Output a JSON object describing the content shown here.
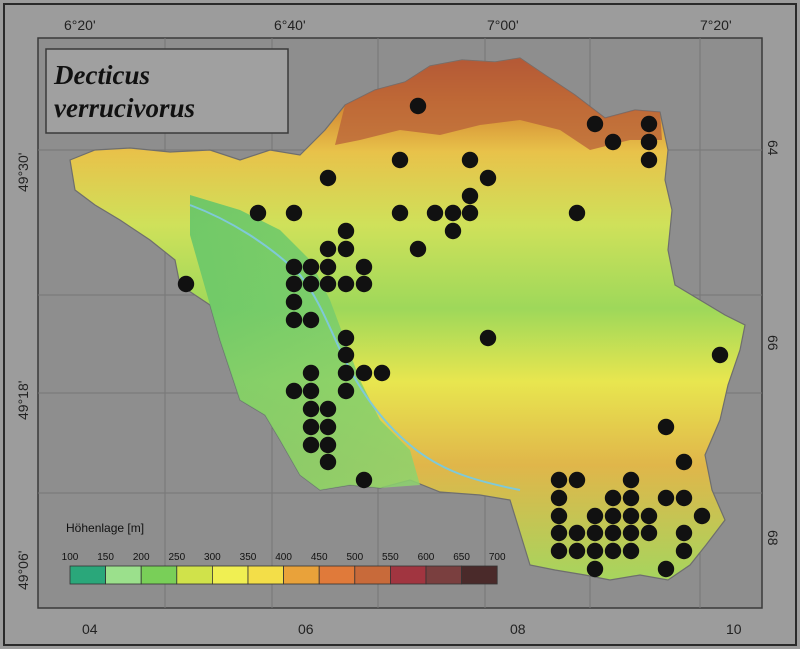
{
  "title": {
    "line1": "Decticus",
    "line2": "verrucivorus"
  },
  "top_labels": [
    "6°20'",
    "6°40'",
    "7°00'",
    "7°20'"
  ],
  "left_labels": [
    "49°30'",
    "49°18'",
    "49°06'"
  ],
  "right_labels": [
    "64",
    "66",
    "68"
  ],
  "bottom_labels": [
    "04",
    "06",
    "08",
    "10"
  ],
  "legend": {
    "title": "Höhenlage [m]",
    "ticks": [
      "100",
      "150",
      "200",
      "250",
      "300",
      "350",
      "400",
      "450",
      "500",
      "550",
      "600",
      "650",
      "700"
    ],
    "colors": [
      "#2aa77a",
      "#9be08c",
      "#79cf58",
      "#d0e24a",
      "#f0ef52",
      "#f3de48",
      "#e9a23a",
      "#e07a3a",
      "#c86a3a",
      "#a13540",
      "#7a3f3f",
      "#4a2a2a"
    ]
  },
  "colors": {
    "background": "#9c9c9c",
    "grid": "#7c7c7c",
    "dot": "#111111"
  },
  "map_data": {
    "species": "Decticus verrucivorus",
    "marker": "occurrence-dot",
    "occurrences": [
      [
        418,
        106
      ],
      [
        595,
        124
      ],
      [
        613,
        142
      ],
      [
        649,
        124
      ],
      [
        649,
        142
      ],
      [
        649,
        160
      ],
      [
        400,
        160
      ],
      [
        470,
        160
      ],
      [
        328,
        178
      ],
      [
        488,
        178
      ],
      [
        470,
        196
      ],
      [
        258,
        213
      ],
      [
        294,
        213
      ],
      [
        400,
        213
      ],
      [
        435,
        213
      ],
      [
        453,
        213
      ],
      [
        470,
        213
      ],
      [
        577,
        213
      ],
      [
        453,
        231
      ],
      [
        346,
        231
      ],
      [
        328,
        249
      ],
      [
        346,
        249
      ],
      [
        418,
        249
      ],
      [
        294,
        267
      ],
      [
        311,
        267
      ],
      [
        328,
        267
      ],
      [
        364,
        267
      ],
      [
        186,
        284
      ],
      [
        294,
        284
      ],
      [
        311,
        284
      ],
      [
        328,
        284
      ],
      [
        346,
        284
      ],
      [
        364,
        284
      ],
      [
        294,
        302
      ],
      [
        294,
        320
      ],
      [
        311,
        320
      ],
      [
        488,
        338
      ],
      [
        346,
        338
      ],
      [
        346,
        355
      ],
      [
        346,
        373
      ],
      [
        364,
        373
      ],
      [
        382,
        373
      ],
      [
        720,
        355
      ],
      [
        311,
        373
      ],
      [
        294,
        391
      ],
      [
        311,
        391
      ],
      [
        346,
        391
      ],
      [
        311,
        409
      ],
      [
        328,
        409
      ],
      [
        311,
        427
      ],
      [
        328,
        427
      ],
      [
        666,
        427
      ],
      [
        311,
        445
      ],
      [
        328,
        445
      ],
      [
        328,
        462
      ],
      [
        684,
        462
      ],
      [
        364,
        480
      ],
      [
        559,
        480
      ],
      [
        577,
        480
      ],
      [
        631,
        480
      ],
      [
        559,
        498
      ],
      [
        613,
        498
      ],
      [
        631,
        498
      ],
      [
        666,
        498
      ],
      [
        684,
        498
      ],
      [
        559,
        516
      ],
      [
        595,
        516
      ],
      [
        613,
        516
      ],
      [
        631,
        516
      ],
      [
        649,
        516
      ],
      [
        702,
        516
      ],
      [
        559,
        533
      ],
      [
        577,
        533
      ],
      [
        595,
        533
      ],
      [
        613,
        533
      ],
      [
        631,
        533
      ],
      [
        649,
        533
      ],
      [
        684,
        533
      ],
      [
        559,
        551
      ],
      [
        577,
        551
      ],
      [
        595,
        551
      ],
      [
        613,
        551
      ],
      [
        631,
        551
      ],
      [
        684,
        551
      ],
      [
        595,
        569
      ],
      [
        666,
        569
      ]
    ]
  }
}
